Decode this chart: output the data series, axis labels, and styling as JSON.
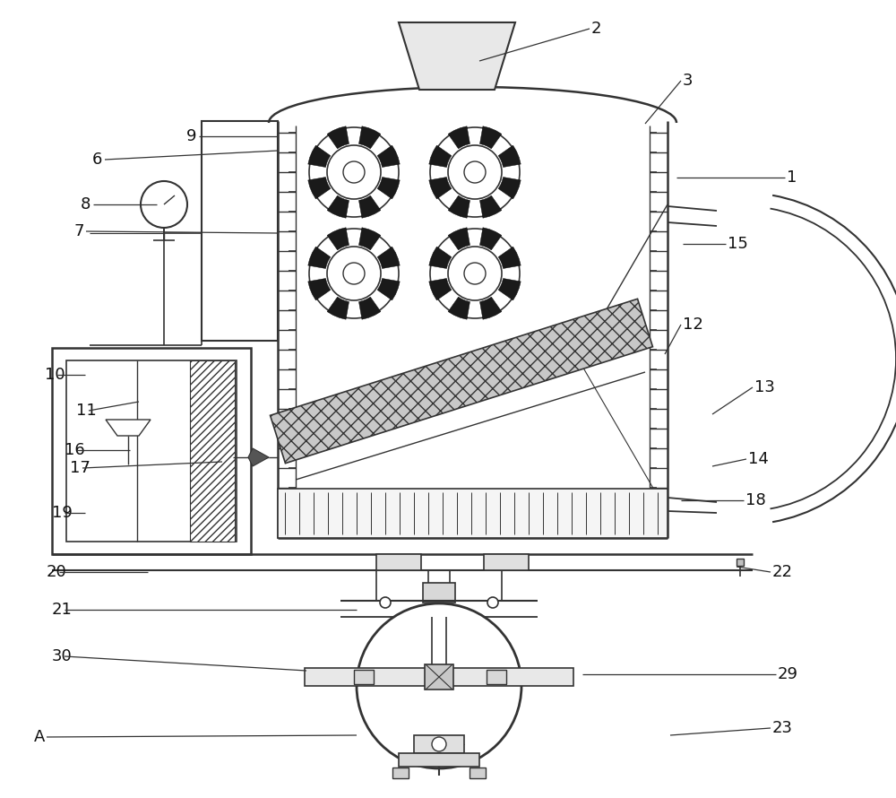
{
  "bg_color": "#ffffff",
  "line_color": "#333333",
  "fig_width": 10.0,
  "fig_height": 8.9,
  "labels_data": [
    [
      "1",
      878,
      198,
      755,
      198
    ],
    [
      "2",
      660,
      32,
      535,
      68
    ],
    [
      "3",
      762,
      90,
      720,
      138
    ],
    [
      "6",
      103,
      178,
      310,
      168
    ],
    [
      "7",
      82,
      258,
      310,
      260
    ],
    [
      "8",
      90,
      228,
      175,
      228
    ],
    [
      "9",
      208,
      152,
      310,
      152
    ],
    [
      "10",
      50,
      418,
      95,
      418
    ],
    [
      "11",
      85,
      458,
      155,
      448
    ],
    [
      "12",
      762,
      362,
      742,
      395
    ],
    [
      "13",
      842,
      432,
      795,
      462
    ],
    [
      "14",
      835,
      512,
      795,
      520
    ],
    [
      "15",
      812,
      272,
      762,
      272
    ],
    [
      "16",
      72,
      502,
      145,
      502
    ],
    [
      "17",
      78,
      522,
      248,
      515
    ],
    [
      "18",
      832,
      558,
      760,
      558
    ],
    [
      "19",
      58,
      572,
      95,
      572
    ],
    [
      "20",
      52,
      638,
      165,
      638
    ],
    [
      "21",
      58,
      680,
      398,
      680
    ],
    [
      "22",
      862,
      638,
      822,
      632
    ],
    [
      "23",
      862,
      812,
      748,
      820
    ],
    [
      "29",
      868,
      752,
      650,
      752
    ],
    [
      "30",
      58,
      732,
      342,
      748
    ],
    [
      "A",
      38,
      822,
      398,
      820
    ]
  ]
}
